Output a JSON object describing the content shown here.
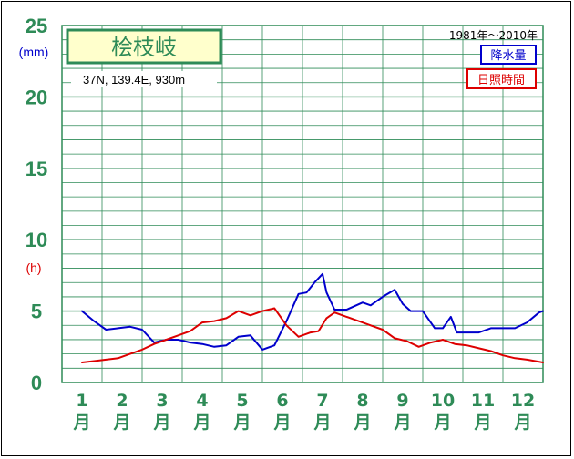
{
  "chart_data": {
    "type": "line",
    "title": "桧枝岐",
    "location": "37N, 139.4E, 930m",
    "period": "1981年〜2010年",
    "y_unit_precip": "(mm)",
    "y_unit_sun": "(h)",
    "ylim": [
      0,
      25
    ],
    "y_ticks": [
      "0",
      "5",
      "10",
      "15",
      "20",
      "25"
    ],
    "months": [
      "1",
      "2",
      "3",
      "4",
      "5",
      "6",
      "7",
      "8",
      "9",
      "10",
      "11",
      "12"
    ],
    "month_suffix": "月",
    "grid": true,
    "legend_position": "top-right",
    "series": [
      {
        "name": "降水量",
        "color": "#0000cc",
        "x": [
          1,
          1.3,
          1.6,
          1.9,
          2.2,
          2.5,
          2.8,
          3.1,
          3.4,
          3.7,
          4.0,
          4.3,
          4.6,
          4.9,
          5.2,
          5.5,
          5.8,
          6.1,
          6.4,
          6.6,
          6.8,
          7.0,
          7.1,
          7.3,
          7.6,
          8.0,
          8.2,
          8.5,
          8.8,
          9.0,
          9.2,
          9.5,
          9.8,
          10.0,
          10.2,
          10.35,
          10.6,
          10.9,
          11.2,
          11.5,
          11.8,
          12.1,
          12.4,
          12.5
        ],
        "values": [
          5.0,
          4.3,
          3.7,
          3.8,
          3.9,
          3.7,
          2.8,
          3.0,
          3.0,
          2.8,
          2.7,
          2.5,
          2.6,
          3.2,
          3.3,
          2.3,
          2.6,
          4.3,
          6.2,
          6.3,
          7.0,
          7.6,
          6.3,
          5.1,
          5.1,
          5.6,
          5.4,
          6.0,
          6.5,
          5.5,
          5.0,
          5.0,
          3.8,
          3.8,
          4.6,
          3.5,
          3.5,
          3.5,
          3.8,
          3.8,
          3.8,
          4.2,
          4.9,
          5.0
        ]
      },
      {
        "name": "日照時間",
        "color": "#dd0000",
        "x": [
          1,
          1.3,
          1.6,
          1.9,
          2.2,
          2.5,
          2.8,
          3.1,
          3.4,
          3.7,
          4.0,
          4.3,
          4.6,
          4.9,
          5.2,
          5.5,
          5.8,
          6.1,
          6.4,
          6.7,
          6.9,
          7.1,
          7.3,
          7.6,
          7.9,
          8.2,
          8.5,
          8.8,
          9.1,
          9.4,
          9.7,
          10.0,
          10.3,
          10.6,
          10.9,
          11.2,
          11.5,
          11.8,
          12.1,
          12.5
        ],
        "values": [
          1.4,
          1.5,
          1.6,
          1.7,
          2.0,
          2.3,
          2.7,
          3.0,
          3.3,
          3.6,
          4.2,
          4.3,
          4.5,
          5.0,
          4.7,
          5.0,
          5.2,
          4.0,
          3.2,
          3.5,
          3.6,
          4.5,
          4.9,
          4.6,
          4.3,
          4.0,
          3.7,
          3.1,
          2.9,
          2.5,
          2.8,
          3.0,
          2.7,
          2.6,
          2.4,
          2.2,
          1.9,
          1.7,
          1.6,
          1.4
        ]
      }
    ]
  }
}
